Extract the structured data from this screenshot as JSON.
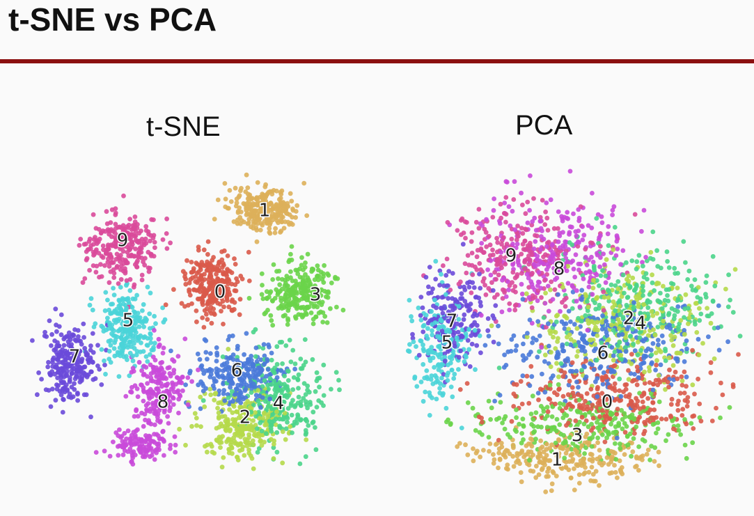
{
  "slide": {
    "title": "t-SNE vs PCA"
  },
  "panels": {
    "tsne": {
      "title": "t-SNE"
    },
    "pca": {
      "title": "PCA"
    }
  },
  "digit_colors": {
    "0": "#d95a4a",
    "1": "#ddb05a",
    "2": "#b5d94a",
    "3": "#6ad44a",
    "4": "#4ad48a",
    "5": "#4ad4d8",
    "6": "#4a7ad9",
    "7": "#6a4ad9",
    "8": "#c94ad9",
    "9": "#d94a9a"
  },
  "tsne_labels": [
    "0",
    "1",
    "2",
    "3",
    "4",
    "5",
    "6",
    "7",
    "8",
    "9"
  ],
  "pca_labels": [
    "0",
    "1",
    "2",
    "3",
    "4",
    "5",
    "6",
    "7",
    "8",
    "9"
  ]
}
